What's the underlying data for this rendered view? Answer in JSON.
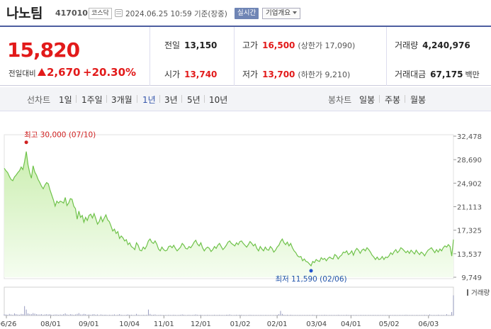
{
  "header": {
    "name": "나노팀",
    "code": "417010",
    "market": "코스닥",
    "timestamp": "2024.06.25 10:59  기준(장중)",
    "realtime": "실시간",
    "company_info": "기업개요"
  },
  "summary": {
    "price": "15,820",
    "change_label": "전일대비",
    "change_amount": "2,670",
    "change_pct": "+20.30%",
    "prev_close": {
      "label": "전일",
      "value": "13,150"
    },
    "high": {
      "label": "고가",
      "value": "16,500",
      "sub": "(상한가 17,090)"
    },
    "volume": {
      "label": "거래량",
      "value": "4,240,976"
    },
    "open": {
      "label": "시가",
      "value": "13,740"
    },
    "low": {
      "label": "저가",
      "value": "13,700",
      "sub": "(하한가 9,210)"
    },
    "amount": {
      "label": "거래대금",
      "value": "67,175",
      "unit": "백만"
    }
  },
  "range_tabs": {
    "label": "선차트",
    "items": [
      "1일",
      "1주일",
      "3개월",
      "1년",
      "3년",
      "5년",
      "10년"
    ],
    "active": "1년"
  },
  "candle_tabs": {
    "label": "봉차트",
    "items": [
      "일봉",
      "주봉",
      "월봉"
    ]
  },
  "colors": {
    "up": "#e21a1a",
    "line": "#6fc24a",
    "fill": "#dff5cc",
    "accent": "#4d5ea0"
  },
  "chart_data": {
    "type": "area",
    "y_ticks": [
      "32,478",
      "28,690",
      "24,902",
      "21,113",
      "17,325",
      "13,537",
      "9,749"
    ],
    "y_range": [
      9749,
      32478
    ],
    "x_ticks": [
      "06/26",
      "08/01",
      "09/01",
      "10/04",
      "11/01",
      "12/01",
      "01/02",
      "02/01",
      "03/04",
      "04/01",
      "05/02",
      "06/03"
    ],
    "max_annotation": "최고 30,000 (07/10)",
    "min_annotation": "최저 11,590 (02/06)",
    "volume_label": "거래량",
    "series": [
      {
        "values": [
          27300,
          26900,
          26600,
          26000,
          25500,
          25300,
          25900,
          26200,
          26600,
          26900,
          27500,
          27100,
          28400,
          30000,
          27900,
          26600,
          25700,
          27700,
          26700,
          26200,
          25500,
          25000,
          24400,
          24000,
          24600,
          25000,
          24800,
          23800,
          23000,
          22200,
          21200,
          22000,
          21700,
          22000,
          21900,
          21700,
          22600,
          21300,
          21700,
          22400,
          22300,
          21200,
          20800,
          19100,
          20400,
          19400,
          19700,
          18600,
          19400,
          18900,
          19700,
          19900,
          19300,
          20000,
          19200,
          18300,
          18700,
          19500,
          18700,
          19300,
          19800,
          19000,
          18700,
          18000,
          17200,
          17500,
          16800,
          17100,
          16000,
          16400,
          16100,
          15600,
          15800,
          15000,
          15300,
          14700,
          14500,
          14200,
          15300,
          14900,
          14100,
          14000,
          14600,
          14300,
          14800,
          15600,
          15900,
          15400,
          15200,
          15600,
          15100,
          14300,
          14000,
          14600,
          14200,
          14000,
          14100,
          14700,
          14800,
          14500,
          14900,
          14400,
          14000,
          14300,
          14600,
          15200,
          14900,
          14400,
          14300,
          14700,
          14500,
          14900,
          15400,
          15700,
          15100,
          14800,
          15300,
          14500,
          14000,
          14400,
          14600,
          14400,
          13900,
          14200,
          14700,
          14400,
          14900,
          15200,
          14700,
          14200,
          14500,
          14900,
          15400,
          15600,
          15200,
          15000,
          14800,
          15300,
          15000,
          15500,
          15600,
          15200,
          14900,
          14600,
          15000,
          15500,
          15200,
          14800,
          15100,
          14400,
          14000,
          14700,
          14300,
          14000,
          14600,
          14200,
          14100,
          14700,
          14400,
          13800,
          14100,
          14600,
          14900,
          15500,
          15900,
          15300,
          15000,
          15400,
          14800,
          15200,
          14500,
          14000,
          13700,
          13200,
          13000,
          13100,
          12400,
          12700,
          12300,
          12200,
          11900,
          11590,
          12300,
          12100,
          12600,
          12400,
          12300,
          12900,
          12600,
          12800,
          12400,
          12800,
          13000,
          12800,
          12700,
          13400,
          13200,
          12700,
          13100,
          13300,
          13800,
          13700,
          14000,
          13400,
          13600,
          14000,
          13300,
          14000,
          14400,
          14100,
          13600,
          14100,
          14300,
          14000,
          14500,
          14200,
          13800,
          13300,
          13000,
          12600,
          13000,
          12600,
          12700,
          13100,
          12600,
          13000,
          12900,
          13200,
          13700,
          13400,
          13900,
          14200,
          13700,
          14000,
          14500,
          14300,
          14000,
          13700,
          14000,
          13600,
          14100,
          13800,
          13500,
          14100,
          13700,
          13400,
          13800,
          13600,
          13200,
          13700,
          14100,
          14300,
          14500,
          14100,
          13700,
          14200,
          13800,
          14300,
          14000,
          14500,
          14800,
          14600,
          15000,
          14700,
          13150,
          15820
        ]
      }
    ],
    "volume": [
      0.05,
      0.04,
      0.03,
      0.06,
      0.04,
      0.03,
      0.08,
      0.05,
      0.04,
      0.03,
      0.06,
      0.05,
      0.35,
      0.22,
      0.08,
      0.06,
      0.05,
      0.09,
      0.07,
      0.05,
      0.04,
      0.04,
      0.05,
      0.03,
      0.04,
      0.05,
      0.04,
      0.05,
      0.03,
      0.03,
      0.04,
      0.04,
      0.03,
      0.04,
      0.03,
      0.05,
      0.08,
      0.04,
      0.03,
      0.05,
      0.04,
      0.03,
      0.04,
      0.06,
      0.09,
      0.04,
      0.04,
      0.06,
      0.05,
      0.03,
      0.04,
      0.03,
      0.04,
      0.05,
      0.03,
      0.04,
      0.02,
      0.04,
      0.03,
      0.03,
      0.03,
      0.02,
      0.03,
      0.02,
      0.03,
      0.04,
      0.02,
      0.03,
      0.05,
      0.03,
      0.02,
      0.02,
      0.03,
      0.04,
      0.03,
      0.03,
      0.02,
      0.02,
      0.06,
      0.03,
      0.02,
      0.02,
      0.03,
      0.02,
      0.03,
      0.22,
      0.06,
      0.03,
      0.03,
      0.04,
      0.02,
      0.02,
      0.03,
      0.02,
      0.02,
      0.02,
      0.02,
      0.03,
      0.02,
      0.02,
      0.03,
      0.02,
      0.02,
      0.02,
      0.03,
      0.04,
      0.03,
      0.02,
      0.02,
      0.03,
      0.02,
      0.02,
      0.03,
      0.04,
      0.03,
      0.02,
      0.03,
      0.02,
      0.02,
      0.02,
      0.03,
      0.02,
      0.02,
      0.02,
      0.03,
      0.02,
      0.02,
      0.03,
      0.02,
      0.02,
      0.02,
      0.03,
      0.03,
      0.04,
      0.02,
      0.02,
      0.02,
      0.03,
      0.02,
      0.03,
      0.03,
      0.02,
      0.02,
      0.02,
      0.02,
      0.03,
      0.02,
      0.02,
      0.02,
      0.02,
      0.02,
      0.02,
      0.02,
      0.02,
      0.02,
      0.02,
      0.02,
      0.02,
      0.02,
      0.02,
      0.02,
      0.03,
      0.05,
      0.17,
      0.06,
      0.03,
      0.02,
      0.03,
      0.02,
      0.03,
      0.02,
      0.02,
      0.02,
      0.02,
      0.02,
      0.02,
      0.02,
      0.02,
      0.02,
      0.02,
      0.02,
      0.02,
      0.03,
      0.02,
      0.02,
      0.02,
      0.02,
      0.02,
      0.02,
      0.03,
      0.02,
      0.02,
      0.02,
      0.02,
      0.02,
      0.02,
      0.02,
      0.03,
      0.02,
      0.02,
      0.02,
      0.02,
      0.03,
      0.02,
      0.02,
      0.02,
      0.02,
      0.02,
      0.02,
      0.02,
      0.02,
      0.02,
      0.02,
      0.02,
      0.02,
      0.02,
      0.02,
      0.02,
      0.02,
      0.02,
      0.02,
      0.02,
      0.02,
      0.02,
      0.02,
      0.02,
      0.02,
      0.02,
      0.02,
      0.02,
      0.02,
      0.02,
      0.02,
      0.02,
      0.02,
      0.02,
      0.02,
      0.03,
      0.02,
      0.02,
      0.02,
      0.02,
      0.02,
      0.02,
      0.02,
      0.02,
      0.02,
      0.02,
      0.03,
      0.02,
      0.02,
      0.04,
      0.02,
      0.02,
      0.02,
      0.02,
      0.03,
      0.02,
      0.02,
      0.02,
      0.02,
      0.05,
      0.02,
      0.02,
      0.13,
      0.75
    ]
  }
}
